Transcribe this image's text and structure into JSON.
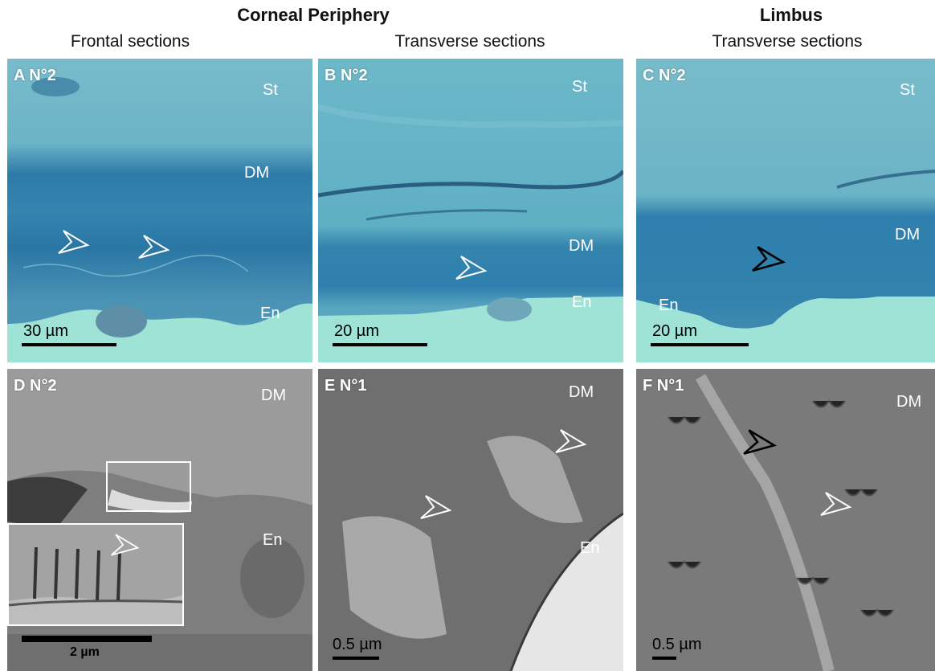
{
  "headers": {
    "corneal_periphery": "Corneal Periphery",
    "limbus": "Limbus",
    "frontal": "Frontal sections",
    "transverse_1": "Transverse sections",
    "transverse_2": "Transverse sections"
  },
  "panels": {
    "A": {
      "label": "A N°2",
      "tags": [
        "St",
        "DM",
        "En"
      ],
      "scale": "30 µm"
    },
    "B": {
      "label": "B N°2",
      "tags": [
        "St",
        "DM",
        "En"
      ],
      "scale": "20 µm"
    },
    "C": {
      "label": "C N°2",
      "tags": [
        "St",
        "DM",
        "En"
      ],
      "scale": "20 µm"
    },
    "D": {
      "label": "D N°2",
      "tags": [
        "DM",
        "En"
      ],
      "scale": "2 µm"
    },
    "E": {
      "label": "E N°1",
      "tags": [
        "DM",
        "En"
      ],
      "scale": "0.5 µm"
    },
    "F": {
      "label": "F N°1",
      "tags": [
        "DM"
      ],
      "scale": "0.5 µm"
    }
  },
  "colors": {
    "light_stroma": "#5fb3c6",
    "dm_band": "#2f7fae",
    "endo_bg": "#9ee3d6",
    "em_gray": "#8a8a8a",
    "em_dark": "#5a5a5a"
  },
  "icons": [
    "arrowhead-icon"
  ]
}
